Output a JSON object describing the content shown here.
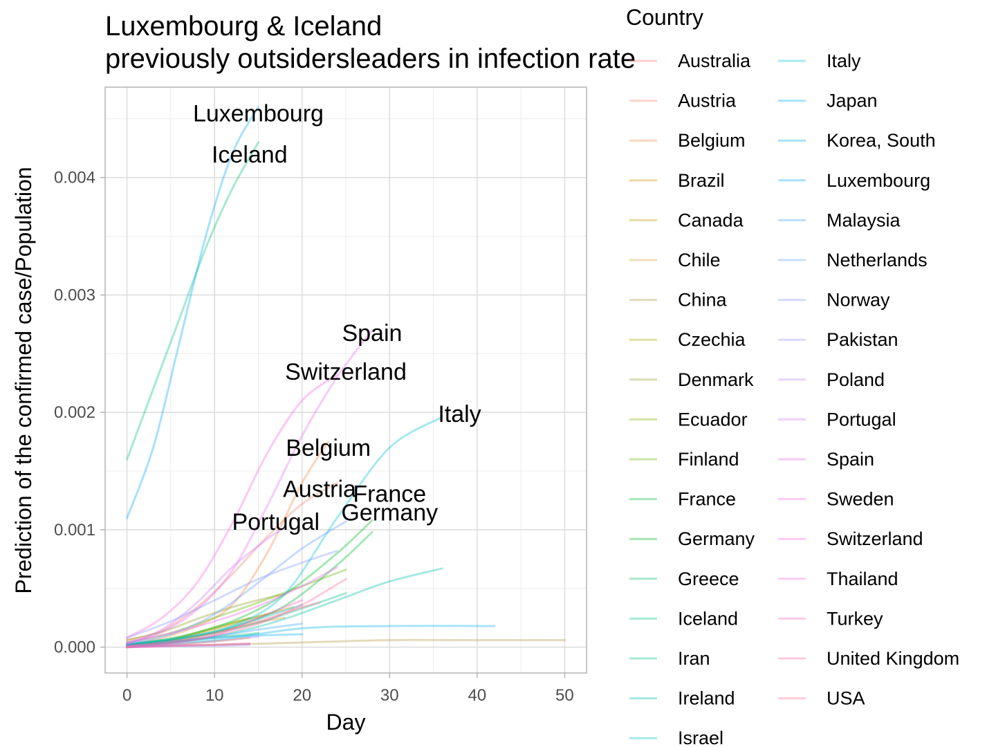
{
  "chart_data": {
    "type": "line",
    "title": [
      "Luxembourg & Iceland",
      "previously outsidersleaders in infection rate"
    ],
    "xlabel": "Day",
    "ylabel": "Prediction of the confirmed case/Population",
    "xlim": [
      -2.5,
      52.5
    ],
    "ylim": [
      -0.00022,
      0.00477
    ],
    "x_ticks": [
      0,
      10,
      20,
      30,
      40,
      50
    ],
    "y_ticks": [
      0.0,
      0.001,
      0.002,
      0.003,
      0.004
    ],
    "x_tick_labels": [
      "0",
      "10",
      "20",
      "30",
      "40",
      "50"
    ],
    "y_tick_labels": [
      "0.000",
      "0.001",
      "0.002",
      "0.003",
      "0.004"
    ],
    "grid": true,
    "legend_title": "Country",
    "legend_placement": "right",
    "annotations": [
      {
        "text": "Luxembourg",
        "x": 15,
        "y": 0.00455
      },
      {
        "text": "Iceland",
        "x": 14,
        "y": 0.0042
      },
      {
        "text": "Spain",
        "x": 28,
        "y": 0.00268
      },
      {
        "text": "Switzerland",
        "x": 25,
        "y": 0.00235
      },
      {
        "text": "Italy",
        "x": 38,
        "y": 0.00199
      },
      {
        "text": "Belgium",
        "x": 23,
        "y": 0.0017
      },
      {
        "text": "Austria",
        "x": 22,
        "y": 0.00135
      },
      {
        "text": "France",
        "x": 30,
        "y": 0.00131
      },
      {
        "text": "Germany",
        "x": 30,
        "y": 0.00115
      },
      {
        "text": "Portugal",
        "x": 17,
        "y": 0.00107
      }
    ],
    "series": [
      {
        "name": "Australia",
        "color": "#F8766D",
        "x": [
          0,
          5,
          10,
          14
        ],
        "y": [
          0.0,
          1e-05,
          2e-05,
          3e-05
        ]
      },
      {
        "name": "Austria",
        "color": "#F2826A",
        "x": [
          0,
          4,
          8,
          12,
          16,
          20,
          24
        ],
        "y": [
          6e-05,
          0.00014,
          0.00034,
          0.00062,
          0.00094,
          0.00122,
          0.0014
        ]
      },
      {
        "name": "Belgium",
        "color": "#EE8A40",
        "x": [
          0,
          4,
          8,
          12,
          16,
          20,
          23
        ],
        "y": [
          2e-05,
          8e-05,
          0.00018,
          0.00036,
          0.0008,
          0.0014,
          0.00175
        ]
      },
      {
        "name": "Brazil",
        "color": "#D89000",
        "x": [
          0,
          5,
          10,
          14
        ],
        "y": [
          0.0,
          2e-05,
          5e-05,
          8e-05
        ]
      },
      {
        "name": "Canada",
        "color": "#C49A00",
        "x": [
          0,
          5,
          10,
          15,
          19
        ],
        "y": [
          1e-05,
          6e-05,
          0.00015,
          0.00026,
          0.00034
        ]
      },
      {
        "name": "Chile",
        "color": "#D49A30",
        "x": [
          0,
          5,
          10,
          15,
          18
        ],
        "y": [
          0.0,
          4e-05,
          0.00012,
          0.00021,
          0.00025
        ]
      },
      {
        "name": "China",
        "color": "#B5963A",
        "x": [
          0,
          10,
          20,
          30,
          40,
          50
        ],
        "y": [
          1e-05,
          2e-05,
          4e-05,
          6e-05,
          6e-05,
          6e-05
        ]
      },
      {
        "name": "Czechia",
        "color": "#A3A500",
        "x": [
          0,
          5,
          10,
          14
        ],
        "y": [
          2e-05,
          7e-05,
          0.00016,
          0.00025
        ]
      },
      {
        "name": "Denmark",
        "color": "#8E9A1E",
        "x": [
          0,
          4,
          8,
          12,
          16,
          18
        ],
        "y": [
          6e-05,
          0.00013,
          0.00024,
          0.00034,
          0.00042,
          0.00045
        ]
      },
      {
        "name": "Ecuador",
        "color": "#7CAE00",
        "x": [
          0,
          5,
          10,
          16
        ],
        "y": [
          1e-05,
          6e-05,
          0.00017,
          0.00028
        ]
      },
      {
        "name": "Finland",
        "color": "#64B200",
        "x": [
          0,
          5,
          10,
          15,
          20,
          25
        ],
        "y": [
          4e-05,
          0.00012,
          0.00025,
          0.00038,
          0.00052,
          0.00066
        ]
      },
      {
        "name": "France",
        "color": "#00BA38",
        "x": [
          0,
          6,
          12,
          18,
          24,
          28
        ],
        "y": [
          2e-05,
          7e-05,
          0.00017,
          0.00035,
          0.0007,
          0.00098
        ]
      },
      {
        "name": "Germany",
        "color": "#00B81F",
        "x": [
          0,
          6,
          12,
          18,
          24,
          28
        ],
        "y": [
          2e-05,
          9e-05,
          0.00022,
          0.00045,
          0.0008,
          0.00108
        ]
      },
      {
        "name": "Greece",
        "color": "#00BE67",
        "x": [
          0,
          5,
          10,
          15
        ],
        "y": [
          1e-05,
          4e-05,
          8e-05,
          0.00012
        ]
      },
      {
        "name": "Iceland",
        "color": "#00BF7D",
        "x": [
          0,
          3,
          6,
          9,
          12,
          15
        ],
        "y": [
          0.0016,
          0.0022,
          0.0028,
          0.0034,
          0.0039,
          0.0043
        ]
      },
      {
        "name": "Iran",
        "color": "#00C08B",
        "x": [
          0,
          5,
          10,
          15,
          20,
          25
        ],
        "y": [
          2e-05,
          6e-05,
          0.00012,
          0.00021,
          0.00033,
          0.00046
        ]
      },
      {
        "name": "Ireland",
        "color": "#00C1AA",
        "x": [
          0,
          6,
          12,
          18,
          24,
          30,
          36
        ],
        "y": [
          1e-05,
          5e-05,
          0.00012,
          0.00024,
          0.0004,
          0.00056,
          0.00067
        ]
      },
      {
        "name": "Israel",
        "color": "#00BFC4",
        "x": [
          0,
          5,
          10,
          15,
          20
        ],
        "y": [
          2e-05,
          6e-05,
          0.00013,
          0.00024,
          0.00036
        ]
      },
      {
        "name": "Italy",
        "color": "#00BCD8",
        "x": [
          0,
          6,
          12,
          18,
          24,
          30,
          36
        ],
        "y": [
          3e-05,
          8e-05,
          0.00018,
          0.00045,
          0.0011,
          0.0017,
          0.00196
        ]
      },
      {
        "name": "Japan",
        "color": "#00B5E4",
        "x": [
          0,
          10,
          20,
          30,
          42
        ],
        "y": [
          1e-05,
          6e-05,
          0.00016,
          0.00018,
          0.00018
        ]
      },
      {
        "name": "Korea, South",
        "color": "#00ADFA",
        "x": [
          0,
          5,
          10,
          15,
          20
        ],
        "y": [
          2e-05,
          5e-05,
          8e-05,
          0.0001,
          0.00011
        ]
      },
      {
        "name": "Luxembourg",
        "color": "#00A9FF",
        "x": [
          0,
          3,
          6,
          9,
          12,
          15
        ],
        "y": [
          0.0011,
          0.0017,
          0.0026,
          0.0035,
          0.0042,
          0.0046
        ]
      },
      {
        "name": "Malaysia",
        "color": "#35A2FF",
        "x": [
          0,
          5,
          10,
          15,
          20
        ],
        "y": [
          1e-05,
          4e-05,
          9e-05,
          0.00015,
          0.0002
        ]
      },
      {
        "name": "Netherlands",
        "color": "#619CFF",
        "x": [
          0,
          5,
          10,
          15,
          20,
          25
        ],
        "y": [
          3e-05,
          0.00011,
          0.00028,
          0.00055,
          0.00084,
          0.00107
        ]
      },
      {
        "name": "Norway",
        "color": "#7D96FF",
        "x": [
          0,
          5,
          10,
          15,
          20,
          24
        ],
        "y": [
          8e-05,
          0.00022,
          0.0004,
          0.00058,
          0.00072,
          0.00082
        ]
      },
      {
        "name": "Pakistan",
        "color": "#9590FF",
        "x": [
          0,
          5,
          10,
          14
        ],
        "y": [
          0.0,
          1e-05,
          1e-05,
          2e-05
        ]
      },
      {
        "name": "Poland",
        "color": "#B983FF",
        "x": [
          0,
          5,
          10,
          15
        ],
        "y": [
          0.0,
          2e-05,
          5e-05,
          9e-05
        ]
      },
      {
        "name": "Portugal",
        "color": "#D874FD",
        "x": [
          0,
          4,
          8,
          12,
          16,
          18
        ],
        "y": [
          3e-05,
          0.00015,
          0.00038,
          0.00068,
          0.00092,
          0.00102
        ]
      },
      {
        "name": "Spain",
        "color": "#E76BF3",
        "x": [
          0,
          4,
          8,
          12,
          16,
          20,
          24,
          28
        ],
        "y": [
          3e-05,
          0.00013,
          0.00032,
          0.00065,
          0.0012,
          0.0018,
          0.0023,
          0.0027
        ]
      },
      {
        "name": "Sweden",
        "color": "#EF67EB",
        "x": [
          0,
          5,
          10,
          15,
          20,
          24
        ],
        "y": [
          4e-05,
          0.00012,
          0.00022,
          0.00035,
          0.00052,
          0.00068
        ]
      },
      {
        "name": "Switzerland",
        "color": "#F763E0",
        "x": [
          0,
          4,
          8,
          12,
          16,
          20,
          24
        ],
        "y": [
          8e-05,
          0.00025,
          0.00055,
          0.00105,
          0.00165,
          0.0021,
          0.00232
        ]
      },
      {
        "name": "Thailand",
        "color": "#FD61D1",
        "x": [
          0,
          5,
          10,
          14
        ],
        "y": [
          0.0,
          1e-05,
          2e-05,
          3e-05
        ]
      },
      {
        "name": "Turkey",
        "color": "#FF62BC",
        "x": [
          0,
          5,
          10,
          15,
          20
        ],
        "y": [
          0.0,
          3e-05,
          0.0001,
          0.00025,
          0.0004
        ]
      },
      {
        "name": "United Kingdom",
        "color": "#FF67A4",
        "x": [
          0,
          5,
          10,
          15,
          20,
          25
        ],
        "y": [
          1e-05,
          4e-05,
          0.0001,
          0.0002,
          0.00036,
          0.00058
        ]
      },
      {
        "name": "USA",
        "color": "#FF6C91",
        "x": [
          0,
          5,
          10,
          15,
          20,
          22
        ],
        "y": [
          1e-05,
          5e-05,
          0.00012,
          0.00022,
          0.00034,
          0.00038
        ]
      }
    ]
  }
}
